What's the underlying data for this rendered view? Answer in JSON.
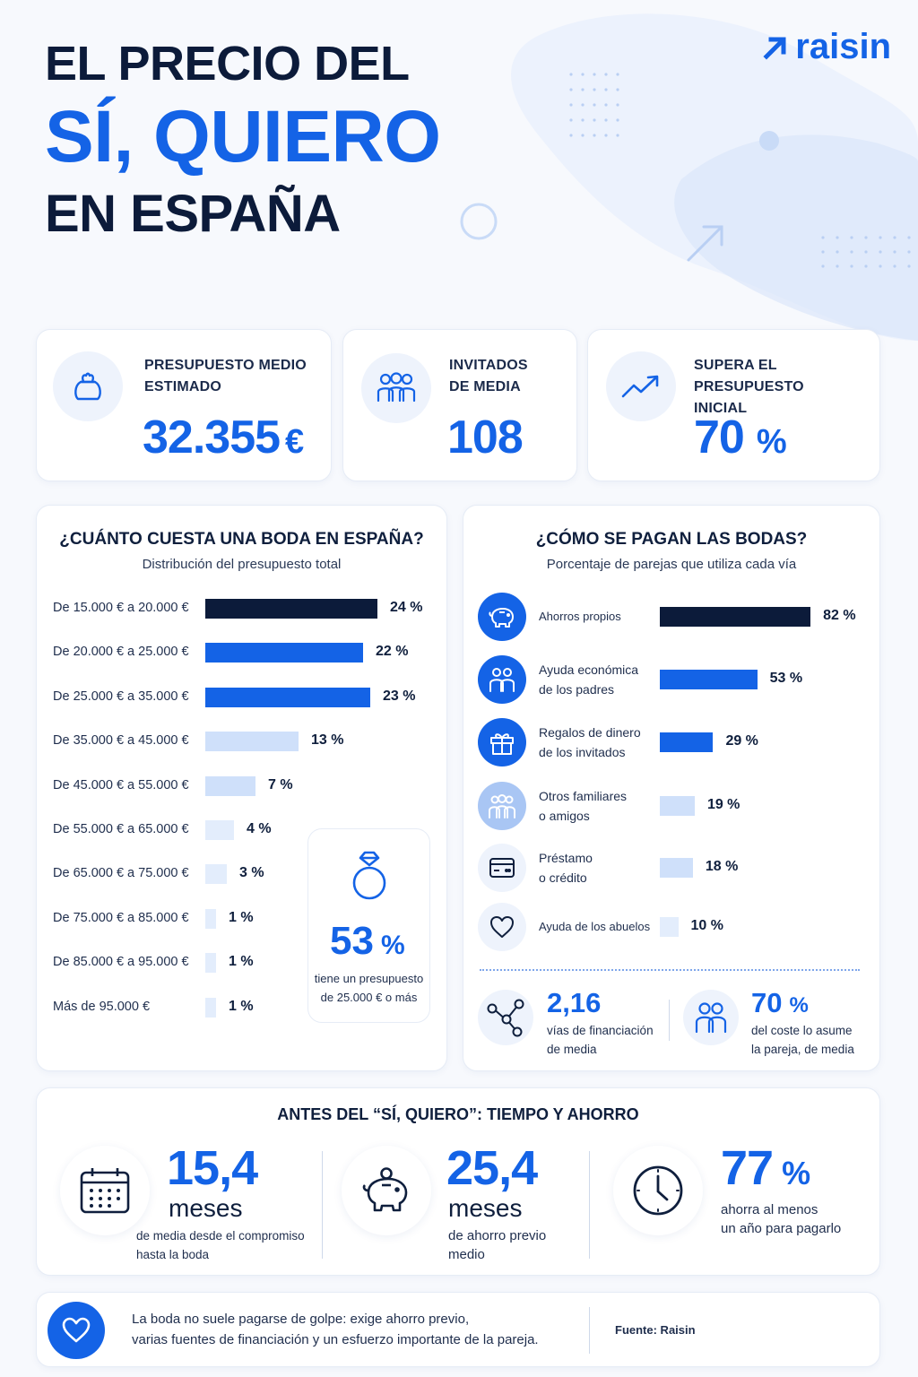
{
  "header": {
    "title_line1": "EL PRECIO DEL",
    "title_line2": "SÍ, QUIERO",
    "title_line3": "EN ESPAÑA",
    "logo_text": "raisin"
  },
  "kpis": [
    {
      "label": "PRESUPUESTO MEDIO\nESTIMADO",
      "value": "32.355",
      "unit": "€",
      "icon": "money-bag-icon"
    },
    {
      "label": "INVITADOS\nDE MEDIA",
      "value": "108",
      "unit": "",
      "icon": "people-icon"
    },
    {
      "label": "SUPERA EL PRESUPUESTO\nINICIAL",
      "value": "70",
      "unit": "%",
      "icon": "trend-up-icon"
    }
  ],
  "cost_section": {
    "title": "¿CUÁNTO CUESTA UNA BODA EN ESPAÑA?",
    "subtitle": "Distribución del presupuesto total",
    "highlight_value": "53",
    "highlight_unit": "%",
    "highlight_text": "tiene un presupuesto\nde 25.000 € o más"
  },
  "pay_section": {
    "title": "¿CÓMO SE PAGAN LAS BODAS?",
    "subtitle": "Porcentaje de parejas que utiliza cada vía",
    "stat1_value": "2,16",
    "stat1_text": "vías de financiación\nde media",
    "stat2_value": "70",
    "stat2_unit": "%",
    "stat2_text": "del coste lo asume\nla pareja, de media"
  },
  "time_section": {
    "title": "ANTES DEL “SÍ, QUIERO”: TIEMPO Y AHORRO",
    "items": [
      {
        "value": "15,4",
        "unit": "meses",
        "text": "de media desde el compromiso\nhasta la boda"
      },
      {
        "value": "25,4",
        "unit": "meses",
        "text": "de ahorro previo\nmedio"
      },
      {
        "value": "77",
        "unit": "%",
        "text": "ahorra al menos\nun año para pagarlo"
      }
    ]
  },
  "footer": {
    "text": "La boda no suele pagarse de golpe: exige ahorro previo,\nvarias fuentes de financiación y un esfuerzo importante de la pareja.",
    "source": "Fuente: Raisin"
  },
  "colors": {
    "navy": "#0c1b3a",
    "blue": "#1463e6",
    "light": "#cfe0fa",
    "lighter": "#e3edfc"
  },
  "chart_data": [
    {
      "type": "bar",
      "orientation": "horizontal",
      "title": "¿CUÁNTO CUESTA UNA BODA EN ESPAÑA?",
      "subtitle": "Distribución del presupuesto total",
      "categories": [
        "De 15.000 € a 20.000 €",
        "De 20.000 € a 25.000 €",
        "De 25.000 € a 35.000 €",
        "De 35.000 € a 45.000 €",
        "De 45.000 € a 55.000 €",
        "De 55.000 € a 65.000 €",
        "De 65.000 € a 75.000 €",
        "De 75.000 € a 85.000 €",
        "De 85.000 € a 95.000 €",
        "Más de 95.000 €"
      ],
      "values": [
        24,
        22,
        23,
        13,
        7,
        4,
        3,
        1,
        1,
        1
      ],
      "value_labels": [
        "24 %",
        "22 %",
        "23 %",
        "13 %",
        "7 %",
        "4 %",
        "3 %",
        "1 %",
        "1 %",
        "1 %"
      ],
      "bar_colors": [
        "#0c1b3a",
        "#1463e6",
        "#1463e6",
        "#cfe0fa",
        "#cfe0fa",
        "#e3edfc",
        "#e3edfc",
        "#e3edfc",
        "#e3edfc",
        "#e3edfc"
      ],
      "grid": false
    },
    {
      "type": "bar",
      "orientation": "horizontal",
      "title": "¿CÓMO SE PAGAN LAS BODAS?",
      "subtitle": "Porcentaje de parejas que utiliza cada vía",
      "categories": [
        "Ahorros propios",
        "Ayuda económica\nde los padres",
        "Regalos de dinero\nde los invitados",
        "Otros familiares\no amigos",
        "Préstamo\no crédito",
        "Ayuda de los abuelos"
      ],
      "values": [
        82,
        53,
        29,
        19,
        18,
        10
      ],
      "value_labels": [
        "82 %",
        "53 %",
        "29 %",
        "19 %",
        "18 %",
        "10 %"
      ],
      "icons": [
        "piggy-bank-icon",
        "parents-icon",
        "gift-icon",
        "family-icon",
        "credit-card-icon",
        "heart-icon"
      ],
      "bar_colors": [
        "#0c1b3a",
        "#1463e6",
        "#1463e6",
        "#cfe0fa",
        "#cfe0fa",
        "#e3edfc"
      ],
      "grid": false
    }
  ]
}
